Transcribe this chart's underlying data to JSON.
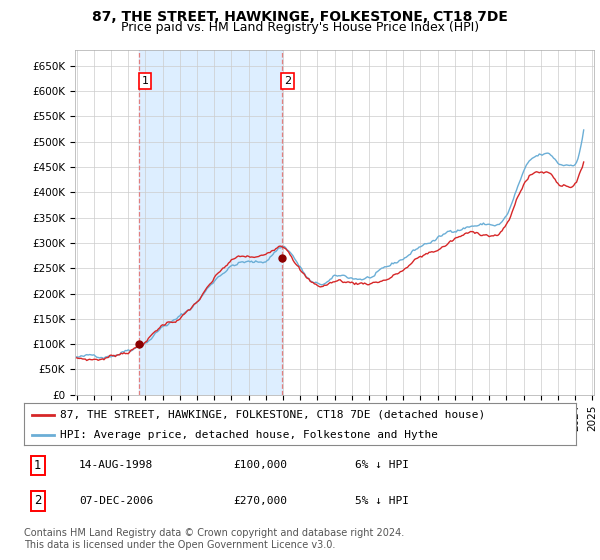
{
  "title": "87, THE STREET, HAWKINGE, FOLKESTONE, CT18 7DE",
  "subtitle": "Price paid vs. HM Land Registry's House Price Index (HPI)",
  "ylabel_ticks": [
    "£0",
    "£50K",
    "£100K",
    "£150K",
    "£200K",
    "£250K",
    "£300K",
    "£350K",
    "£400K",
    "£450K",
    "£500K",
    "£550K",
    "£600K",
    "£650K"
  ],
  "ylim": [
    0,
    680000
  ],
  "legend_line1": "87, THE STREET, HAWKINGE, FOLKESTONE, CT18 7DE (detached house)",
  "legend_line2": "HPI: Average price, detached house, Folkestone and Hythe",
  "sale1_date": "14-AUG-1998",
  "sale1_price": "£100,000",
  "sale1_hpi": "6% ↓ HPI",
  "sale2_date": "07-DEC-2006",
  "sale2_price": "£270,000",
  "sale2_hpi": "5% ↓ HPI",
  "footnote": "Contains HM Land Registry data © Crown copyright and database right 2024.\nThis data is licensed under the Open Government Licence v3.0.",
  "hpi_color": "#6baed6",
  "price_color": "#d62728",
  "vline_color": "#e08080",
  "shade_color": "#ddeeff",
  "dot_color": "#8b0000",
  "grid_color": "#cccccc",
  "bg_color": "#ffffff",
  "plot_bg_color": "#ffffff",
  "sale1_x": 1998.62,
  "sale1_y": 100000,
  "sale2_x": 2006.92,
  "sale2_y": 270000,
  "vline1_x": 1998.62,
  "vline2_x": 2006.92,
  "xmin": 1994.9,
  "xmax": 2025.1,
  "title_fontsize": 10,
  "subtitle_fontsize": 9,
  "tick_fontsize": 7.5,
  "legend_fontsize": 8,
  "footnote_fontsize": 7
}
